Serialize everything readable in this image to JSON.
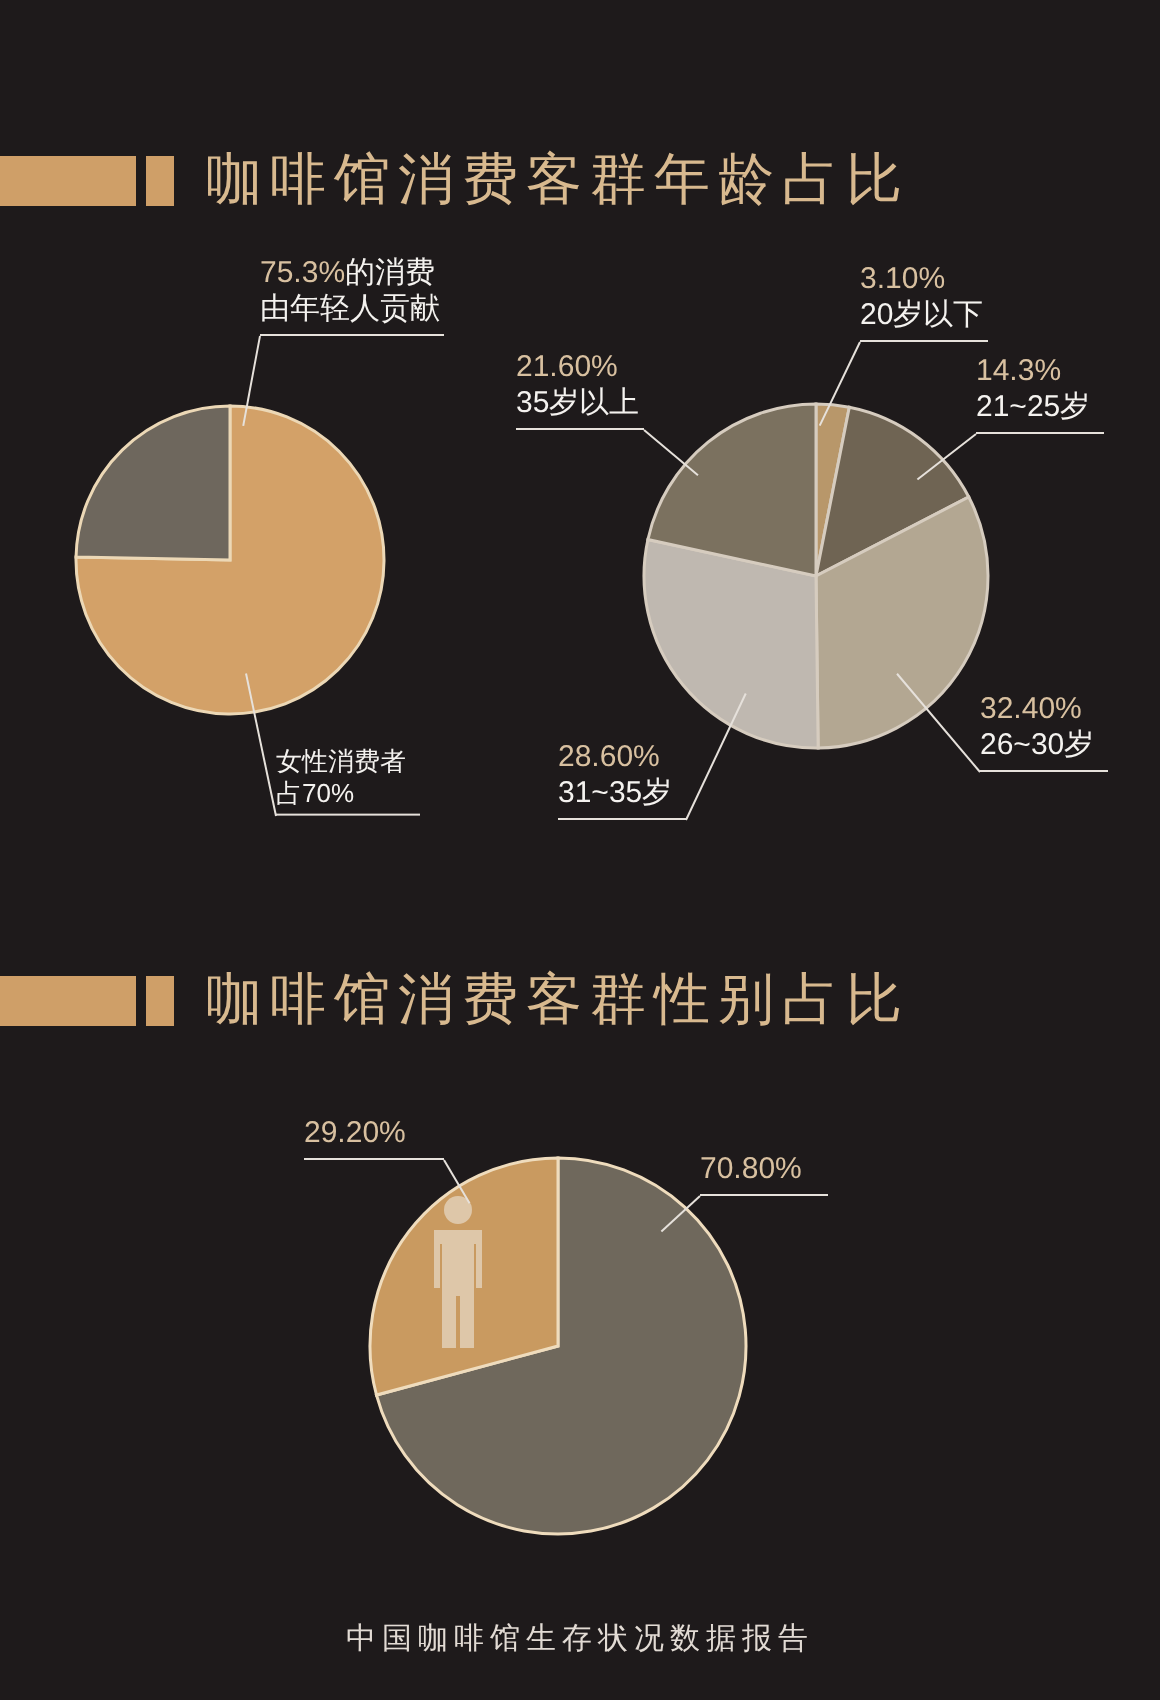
{
  "chart_data": [
    {
      "type": "pie",
      "title": "咖啡馆消费客群年龄占比",
      "categories": [
        null,
        null
      ],
      "values": [
        75.3,
        24.7
      ],
      "colors": [
        "#d3a168",
        "#6e675d"
      ],
      "value_labels": [
        "75.3%的消费由年轻人贡献",
        null
      ],
      "annotations": [
        "女性消费者占70%"
      ]
    },
    {
      "type": "pie",
      "categories": [
        "20岁以下",
        "21~25岁",
        "26~30岁",
        "31~35岁",
        "35岁以上"
      ],
      "values": [
        3.1,
        14.3,
        32.4,
        28.6,
        21.6
      ],
      "colors": [
        "#b8976a",
        "#6f6453",
        "#b3a792",
        "#bfb8b0",
        "#7b715f"
      ],
      "value_labels": [
        "3.10%",
        "14.3%",
        "32.40%",
        "28.60%",
        "21.60%"
      ]
    },
    {
      "type": "pie",
      "title": "咖啡馆消费客群性别占比",
      "categories": [
        null,
        null
      ],
      "values": [
        70.8,
        29.2
      ],
      "colors": [
        "#6f685c",
        "#c99a60"
      ],
      "value_labels": [
        "70.80%",
        "29.20%"
      ],
      "annotations": [
        "中国咖啡馆生存状况数据报告"
      ]
    }
  ]
}
